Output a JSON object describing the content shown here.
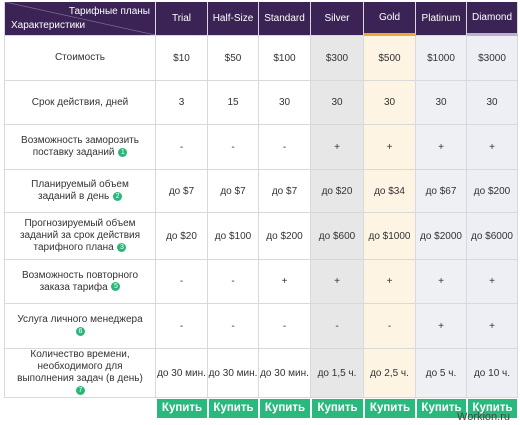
{
  "header": {
    "plans_title": "Тарифные планы",
    "features_title": "Характеристики",
    "plans": [
      "Trial",
      "Half-Size",
      "Standard",
      "Silver",
      "Gold",
      "Platinum",
      "Diamond"
    ]
  },
  "rows": [
    {
      "label": "Стоимость",
      "badge": "",
      "values": [
        "$10",
        "$50",
        "$100",
        "$300",
        "$500",
        "$1000",
        "$3000"
      ]
    },
    {
      "label": "Срок действия, дней",
      "badge": "",
      "values": [
        "3",
        "15",
        "30",
        "30",
        "30",
        "30",
        "30"
      ]
    },
    {
      "label": "Возможность заморозить поставку заданий",
      "badge": "1",
      "values": [
        "-",
        "-",
        "-",
        "+",
        "+",
        "+",
        "+"
      ]
    },
    {
      "label": "Планируемый объем заданий в день",
      "badge": "2",
      "values": [
        "до $7",
        "до $7",
        "до $7",
        "до $20",
        "до $34",
        "до $67",
        "до $200"
      ]
    },
    {
      "label": "Прогнозируемый объем заданий за срок действия тарифного плана",
      "badge": "3",
      "values": [
        "до $20",
        "до $100",
        "до $200",
        "до $600",
        "до $1000",
        "до $2000",
        "до $6000"
      ]
    },
    {
      "label": "Возможность повторного заказа тарифа",
      "badge": "5",
      "values": [
        "-",
        "-",
        "+",
        "+",
        "+",
        "+",
        "+"
      ]
    },
    {
      "label": "Услуга личного менеджера",
      "badge": "6",
      "values": [
        "-",
        "-",
        "-",
        "-",
        "-",
        "+",
        "+"
      ]
    },
    {
      "label": "Количество времени, необходимого для выполнения задач (в день)",
      "badge": "7",
      "values": [
        "до 30 мин.",
        "до 30 мин.",
        "до 30 мин.",
        "до 1,5 ч.",
        "до 2,5 ч.",
        "до 5 ч.",
        "до 10 ч."
      ]
    }
  ],
  "buy_label": "Купить",
  "watermark": "Workion.ru",
  "colors": {
    "header_bg": "#3b2455",
    "buy_button": "#2ab97d",
    "badge": "#2ab679",
    "silver_col": "#e7e7e7",
    "gold_col": "#fdf4e3",
    "gold_accent": "#f0a63a",
    "platinum_col": "#eef0f4",
    "diamond_col": "#eeeef5"
  }
}
